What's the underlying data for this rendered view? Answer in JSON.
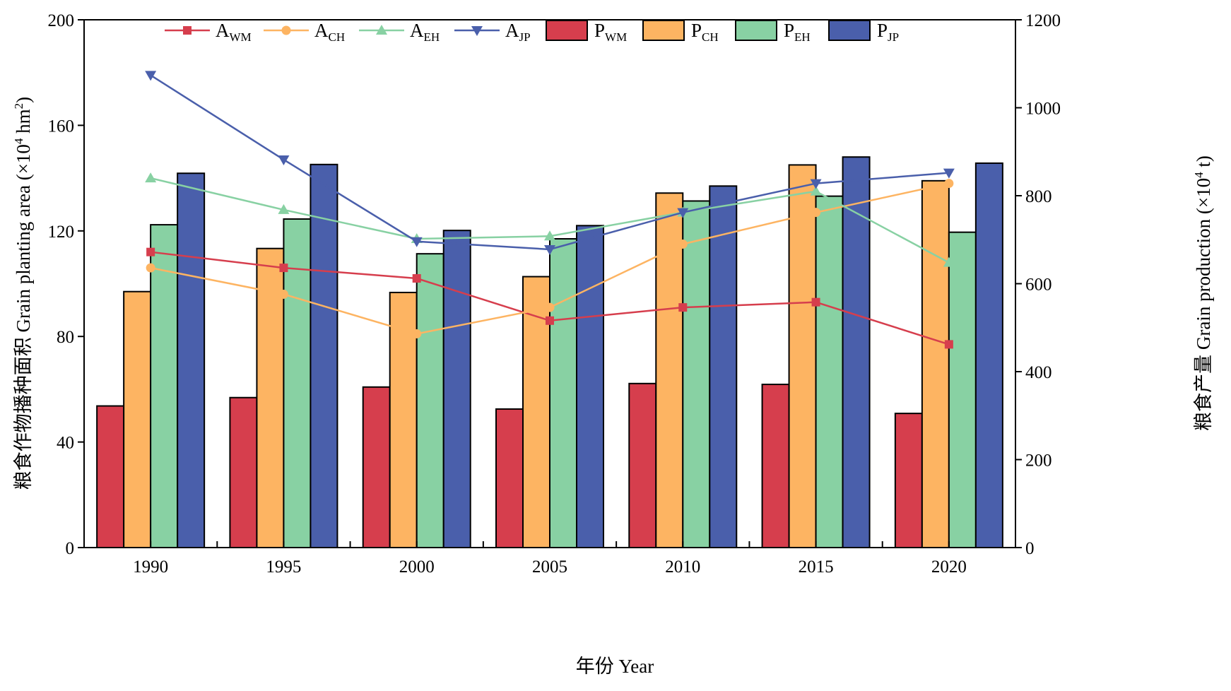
{
  "chart_data": {
    "type": "bar",
    "categories": [
      "1990",
      "1995",
      "2000",
      "2005",
      "2010",
      "2015",
      "2020"
    ],
    "xlabel": "年份 Year",
    "ylabel_left": {
      "main": "粮食作物播种面积 Grain planting area (×10",
      "sup1": "4",
      "mid": " hm",
      "sup2": "2",
      "end": ")"
    },
    "ylabel_right": {
      "main": "粮食产量 Grain production (×10",
      "sup": "4",
      "end": " t)"
    },
    "ylim_left": [
      0,
      200
    ],
    "ylim_right": [
      0,
      1200
    ],
    "yticks_left": [
      "0",
      "40",
      "80",
      "120",
      "160",
      "200"
    ],
    "yticks_right": [
      "0",
      "200",
      "400",
      "600",
      "800",
      "1000",
      "1200"
    ],
    "bar_series": [
      {
        "id": "P_WM",
        "label": "P",
        "sub": "WM",
        "color": "#d63e4d",
        "values": [
          322,
          341,
          365,
          315,
          373,
          371,
          305
        ]
      },
      {
        "id": "P_CH",
        "label": "P",
        "sub": "CH",
        "color": "#fdb462",
        "values": [
          582,
          680,
          580,
          616,
          806,
          870,
          834
        ]
      },
      {
        "id": "P_EH",
        "label": "P",
        "sub": "EH",
        "color": "#88d1a3",
        "values": [
          734,
          747,
          668,
          702,
          788,
          799,
          717
        ]
      },
      {
        "id": "P_JP",
        "label": "P",
        "sub": "JP",
        "color": "#4a5fab",
        "values": [
          851,
          871,
          721,
          732,
          822,
          888,
          874
        ]
      }
    ],
    "line_series": [
      {
        "id": "A_WM",
        "label": "A",
        "sub": "WM",
        "color": "#d63e4d",
        "marker": "square",
        "values": [
          112,
          106,
          102,
          86,
          91,
          93,
          77
        ]
      },
      {
        "id": "A_CH",
        "label": "A",
        "sub": "CH",
        "color": "#fdb462",
        "marker": "circle",
        "values": [
          106,
          96,
          81,
          91,
          115,
          127,
          138
        ]
      },
      {
        "id": "A_EH",
        "label": "A",
        "sub": "EH",
        "color": "#88d1a3",
        "marker": "triangle-up",
        "values": [
          140,
          128,
          117,
          118,
          127,
          135,
          108
        ]
      },
      {
        "id": "A_JP",
        "label": "A",
        "sub": "JP",
        "color": "#4a5fab",
        "marker": "triangle-down",
        "values": [
          179,
          147,
          116,
          113,
          127,
          138,
          142
        ]
      }
    ],
    "legend_placement": "top",
    "grid": false
  }
}
